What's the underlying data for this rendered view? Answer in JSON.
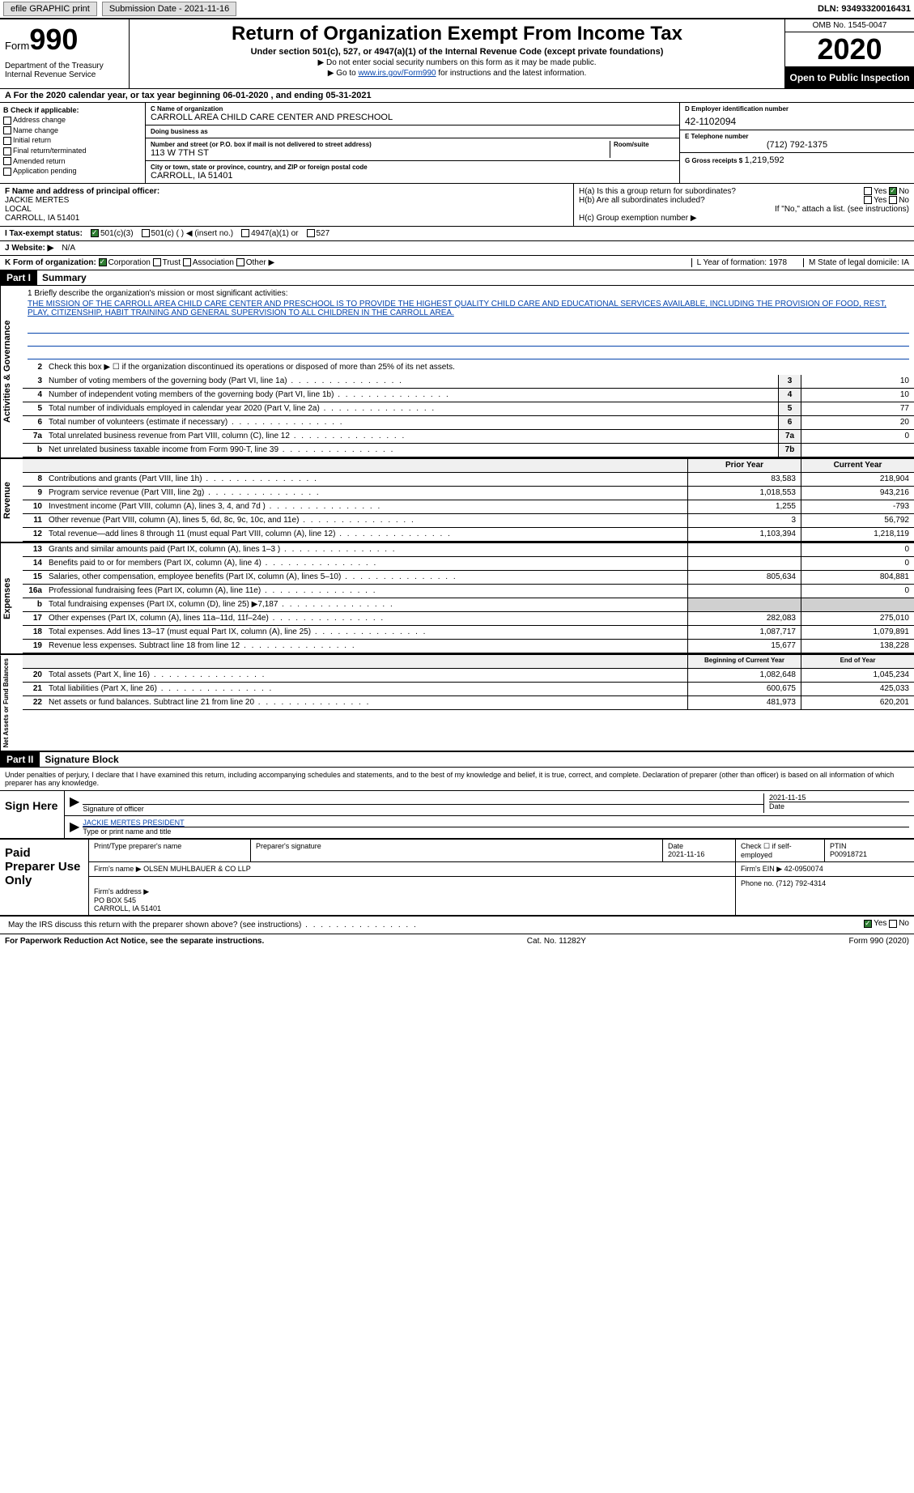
{
  "topbar": {
    "efile": "efile GRAPHIC print",
    "sub_label": "Submission Date - 2021-11-16",
    "dln": "DLN: 93493320016431"
  },
  "header": {
    "form_prefix": "Form",
    "form_num": "990",
    "dept": "Department of the Treasury\nInternal Revenue Service",
    "title": "Return of Organization Exempt From Income Tax",
    "subtitle": "Under section 501(c), 527, or 4947(a)(1) of the Internal Revenue Code (except private foundations)",
    "note1": "▶ Do not enter social security numbers on this form as it may be made public.",
    "note2_pre": "▶ Go to ",
    "note2_link": "www.irs.gov/Form990",
    "note2_post": " for instructions and the latest information.",
    "omb": "OMB No. 1545-0047",
    "year": "2020",
    "open": "Open to Public Inspection"
  },
  "period": "A For the 2020 calendar year, or tax year beginning 06-01-2020   , and ending 05-31-2021",
  "sectionB": {
    "title": "B Check if applicable:",
    "items": [
      "Address change",
      "Name change",
      "Initial return",
      "Final return/terminated",
      "Amended return",
      "Application pending"
    ]
  },
  "sectionC": {
    "name_lbl": "C Name of organization",
    "name": "CARROLL AREA CHILD CARE CENTER AND PRESCHOOL",
    "dba_lbl": "Doing business as",
    "dba": "",
    "addr_lbl": "Number and street (or P.O. box if mail is not delivered to street address)",
    "addr": "113 W 7TH ST",
    "room_lbl": "Room/suite",
    "city_lbl": "City or town, state or province, country, and ZIP or foreign postal code",
    "city": "CARROLL, IA  51401"
  },
  "sectionD": {
    "ein_lbl": "D Employer identification number",
    "ein": "42-1102094",
    "tel_lbl": "E Telephone number",
    "tel": "(712) 792-1375",
    "gross_lbl": "G Gross receipts $",
    "gross": "1,219,592"
  },
  "sectionF": {
    "lbl": "F Name and address of principal officer:",
    "name": "JACKIE MERTES",
    "addr1": "LOCAL",
    "addr2": "CARROLL, IA  51401"
  },
  "sectionH": {
    "a": "H(a)  Is this a group return for subordinates?",
    "b": "H(b)  Are all subordinates included?",
    "note": "If \"No,\" attach a list. (see instructions)",
    "c": "H(c)  Group exemption number ▶"
  },
  "taxstatus": {
    "lbl": "I  Tax-exempt status:",
    "opts": [
      "501(c)(3)",
      "501(c) (  ) ◀ (insert no.)",
      "4947(a)(1) or",
      "527"
    ]
  },
  "website": {
    "lbl": "J  Website: ▶",
    "val": "N/A"
  },
  "korg": {
    "lbl": "K Form of organization:",
    "opts": [
      "Corporation",
      "Trust",
      "Association",
      "Other ▶"
    ],
    "L": "L Year of formation: 1978",
    "M": "M State of legal domicile: IA"
  },
  "part1": {
    "hdr": "Part I",
    "title": "Summary",
    "mission_lbl": "1  Briefly describe the organization's mission or most significant activities:",
    "mission": "THE MISSION OF THE CARROLL AREA CHILD CARE CENTER AND PRESCHOOL IS TO PROVIDE THE HIGHEST QUALITY CHILD CARE AND EDUCATIONAL SERVICES AVAILABLE, INCLUDING THE PROVISION OF FOOD, REST, PLAY, CITIZENSHIP, HABIT TRAINING AND GENERAL SUPERVISION TO ALL CHILDREN IN THE CARROLL AREA.",
    "gov": {
      "side": "Activities & Governance",
      "line2": "Check this box ▶ ☐ if the organization discontinued its operations or disposed of more than 25% of its net assets.",
      "rows": [
        {
          "n": "3",
          "t": "Number of voting members of the governing body (Part VI, line 1a)",
          "box": "3",
          "v": "10"
        },
        {
          "n": "4",
          "t": "Number of independent voting members of the governing body (Part VI, line 1b)",
          "box": "4",
          "v": "10"
        },
        {
          "n": "5",
          "t": "Total number of individuals employed in calendar year 2020 (Part V, line 2a)",
          "box": "5",
          "v": "77"
        },
        {
          "n": "6",
          "t": "Total number of volunteers (estimate if necessary)",
          "box": "6",
          "v": "20"
        },
        {
          "n": "7a",
          "t": "Total unrelated business revenue from Part VIII, column (C), line 12",
          "box": "7a",
          "v": "0"
        },
        {
          "n": "b",
          "t": "Net unrelated business taxable income from Form 990-T, line 39",
          "box": "7b",
          "v": ""
        }
      ]
    },
    "rev": {
      "side": "Revenue",
      "hdr_prior": "Prior Year",
      "hdr_curr": "Current Year",
      "rows": [
        {
          "n": "8",
          "t": "Contributions and grants (Part VIII, line 1h)",
          "p": "83,583",
          "c": "218,904"
        },
        {
          "n": "9",
          "t": "Program service revenue (Part VIII, line 2g)",
          "p": "1,018,553",
          "c": "943,216"
        },
        {
          "n": "10",
          "t": "Investment income (Part VIII, column (A), lines 3, 4, and 7d )",
          "p": "1,255",
          "c": "-793"
        },
        {
          "n": "11",
          "t": "Other revenue (Part VIII, column (A), lines 5, 6d, 8c, 9c, 10c, and 11e)",
          "p": "3",
          "c": "56,792"
        },
        {
          "n": "12",
          "t": "Total revenue—add lines 8 through 11 (must equal Part VIII, column (A), line 12)",
          "p": "1,103,394",
          "c": "1,218,119"
        }
      ]
    },
    "exp": {
      "side": "Expenses",
      "rows": [
        {
          "n": "13",
          "t": "Grants and similar amounts paid (Part IX, column (A), lines 1–3 )",
          "p": "",
          "c": "0"
        },
        {
          "n": "14",
          "t": "Benefits paid to or for members (Part IX, column (A), line 4)",
          "p": "",
          "c": "0"
        },
        {
          "n": "15",
          "t": "Salaries, other compensation, employee benefits (Part IX, column (A), lines 5–10)",
          "p": "805,634",
          "c": "804,881"
        },
        {
          "n": "16a",
          "t": "Professional fundraising fees (Part IX, column (A), line 11e)",
          "p": "",
          "c": "0"
        },
        {
          "n": "b",
          "t": "Total fundraising expenses (Part IX, column (D), line 25) ▶7,187",
          "p": "",
          "c": "",
          "shade": true
        },
        {
          "n": "17",
          "t": "Other expenses (Part IX, column (A), lines 11a–11d, 11f–24e)",
          "p": "282,083",
          "c": "275,010"
        },
        {
          "n": "18",
          "t": "Total expenses. Add lines 13–17 (must equal Part IX, column (A), line 25)",
          "p": "1,087,717",
          "c": "1,079,891"
        },
        {
          "n": "19",
          "t": "Revenue less expenses. Subtract line 18 from line 12",
          "p": "15,677",
          "c": "138,228"
        }
      ]
    },
    "net": {
      "side": "Net Assets or Fund Balances",
      "hdr_beg": "Beginning of Current Year",
      "hdr_end": "End of Year",
      "rows": [
        {
          "n": "20",
          "t": "Total assets (Part X, line 16)",
          "p": "1,082,648",
          "c": "1,045,234"
        },
        {
          "n": "21",
          "t": "Total liabilities (Part X, line 26)",
          "p": "600,675",
          "c": "425,033"
        },
        {
          "n": "22",
          "t": "Net assets or fund balances. Subtract line 21 from line 20",
          "p": "481,973",
          "c": "620,201"
        }
      ]
    }
  },
  "part2": {
    "hdr": "Part II",
    "title": "Signature Block",
    "decl": "Under penalties of perjury, I declare that I have examined this return, including accompanying schedules and statements, and to the best of my knowledge and belief, it is true, correct, and complete. Declaration of preparer (other than officer) is based on all information of which preparer has any knowledge.",
    "sign_here": "Sign Here",
    "sig_officer": "Signature of officer",
    "sig_date": "2021-11-15",
    "date_lbl": "Date",
    "officer": "JACKIE MERTES PRESIDENT",
    "officer_lbl": "Type or print name and title",
    "paid": "Paid Preparer Use Only",
    "prep_name_lbl": "Print/Type preparer's name",
    "prep_sig_lbl": "Preparer's signature",
    "prep_date_lbl": "Date",
    "prep_date": "2021-11-16",
    "self_emp": "Check ☐ if self-employed",
    "ptin_lbl": "PTIN",
    "ptin": "P00918721",
    "firm_name_lbl": "Firm's name    ▶",
    "firm_name": "OLSEN MUHLBAUER & CO LLP",
    "firm_ein_lbl": "Firm's EIN ▶",
    "firm_ein": "42-0950074",
    "firm_addr_lbl": "Firm's address ▶",
    "firm_addr": "PO BOX 545\nCARROLL, IA  51401",
    "firm_phone_lbl": "Phone no.",
    "firm_phone": "(712) 792-4314",
    "may_irs": "May the IRS discuss this return with the preparer shown above? (see instructions)"
  },
  "footer": {
    "pra": "For Paperwork Reduction Act Notice, see the separate instructions.",
    "cat": "Cat. No. 11282Y",
    "form": "Form 990 (2020)"
  }
}
